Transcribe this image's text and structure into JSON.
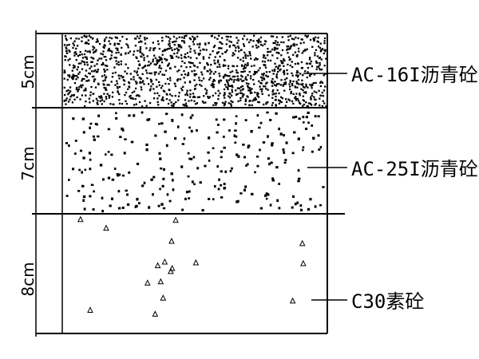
{
  "layers": [
    {
      "thickness": "5cm",
      "material": "AC-16I沥青砼"
    },
    {
      "thickness": "7cm",
      "material": "AC-25I沥青砼"
    },
    {
      "thickness": "8cm",
      "material": "C30素砼"
    }
  ]
}
